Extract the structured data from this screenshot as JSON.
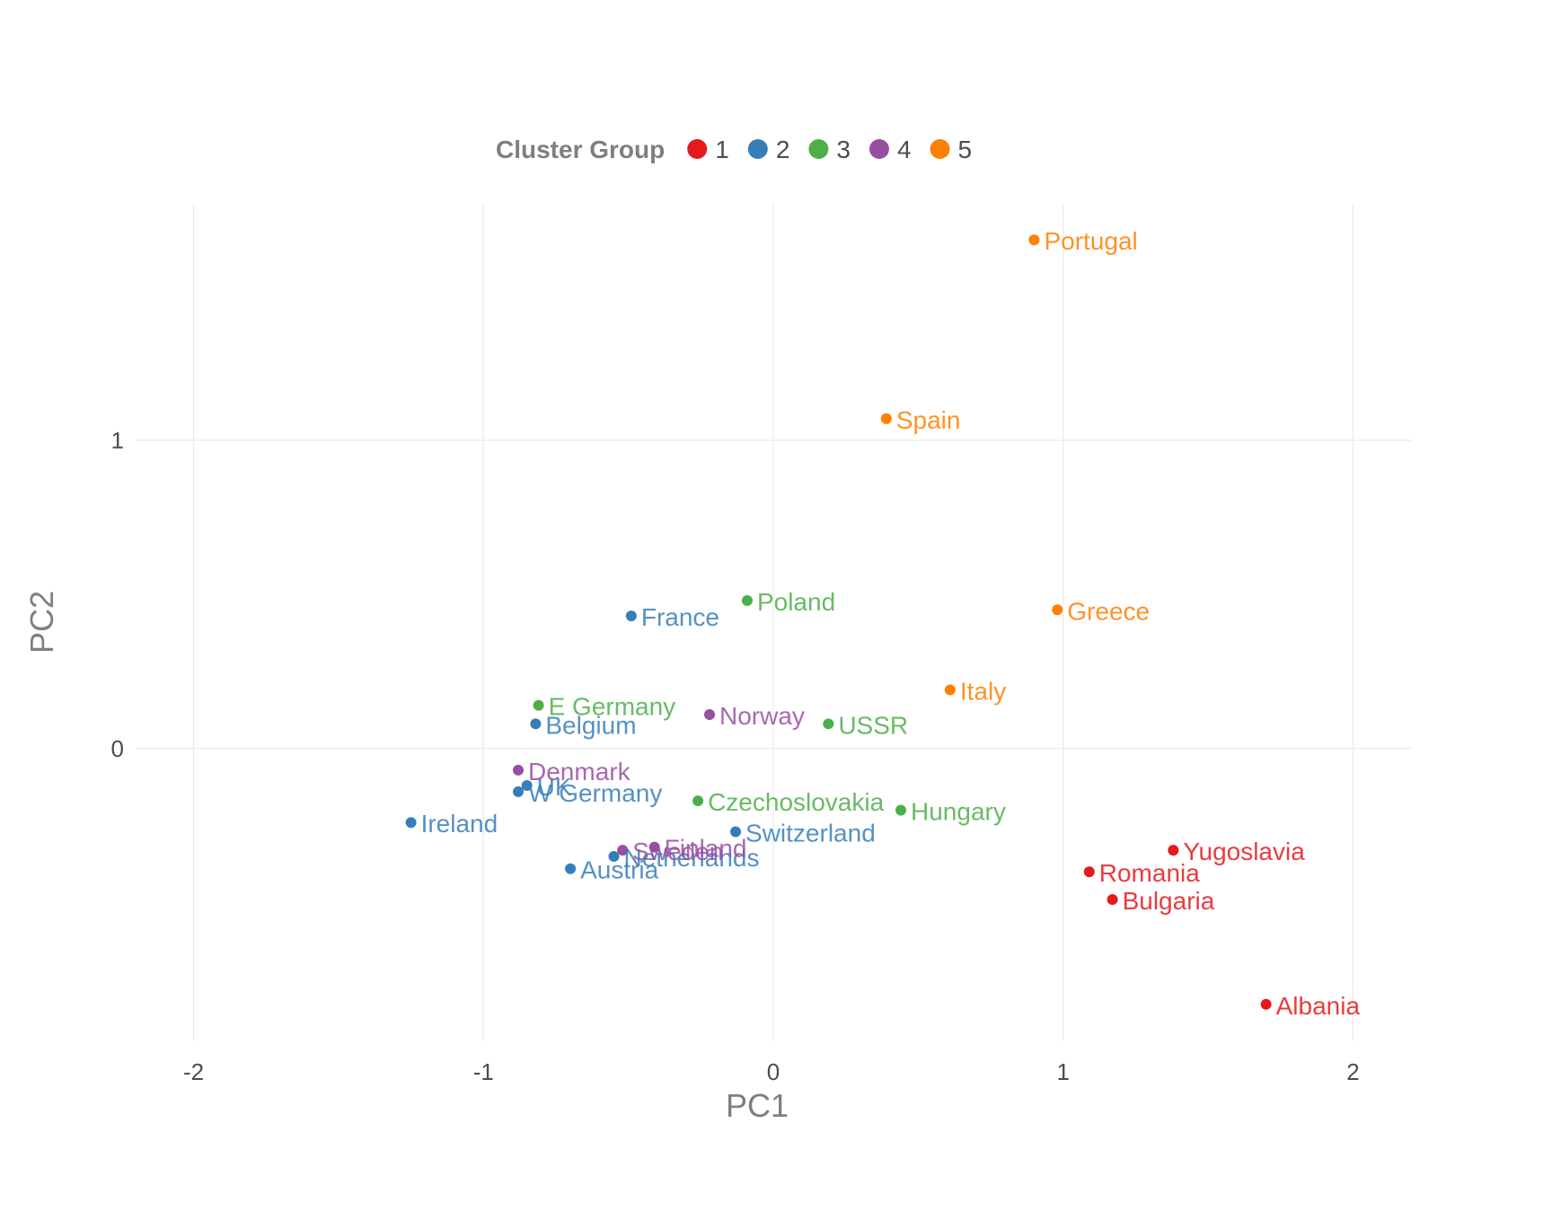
{
  "chart_data": {
    "type": "scatter",
    "xlabel": "PC1",
    "ylabel": "PC2",
    "xlim": [
      -2.2,
      2.2
    ],
    "ylim": [
      -0.95,
      1.77
    ],
    "x_ticks": [
      -2,
      -1,
      0,
      1,
      2
    ],
    "x_tick_labels": [
      "-2",
      "-1",
      "0",
      "1",
      "2"
    ],
    "y_ticks": [
      0,
      1
    ],
    "y_tick_labels": [
      "0",
      "1"
    ],
    "grid": true,
    "legend": {
      "title": "Cluster Group",
      "placement": "top",
      "entries": [
        {
          "label": "1",
          "color": "#e41a1c"
        },
        {
          "label": "2",
          "color": "#377eb8"
        },
        {
          "label": "3",
          "color": "#4daf4a"
        },
        {
          "label": "4",
          "color": "#984ea3"
        },
        {
          "label": "5",
          "color": "#ff7f00"
        }
      ]
    },
    "points": [
      {
        "label": "Portugal",
        "x": 0.9,
        "y": 1.65,
        "cluster": "5"
      },
      {
        "label": "Spain",
        "x": 0.39,
        "y": 1.07,
        "cluster": "5"
      },
      {
        "label": "Greece",
        "x": 0.98,
        "y": 0.45,
        "cluster": "5"
      },
      {
        "label": "Italy",
        "x": 0.61,
        "y": 0.19,
        "cluster": "5"
      },
      {
        "label": "Poland",
        "x": -0.09,
        "y": 0.48,
        "cluster": "3"
      },
      {
        "label": "E Germany",
        "x": -0.81,
        "y": 0.14,
        "cluster": "3"
      },
      {
        "label": "USSR",
        "x": 0.19,
        "y": 0.08,
        "cluster": "3"
      },
      {
        "label": "Czechoslovakia",
        "x": -0.26,
        "y": -0.17,
        "cluster": "3"
      },
      {
        "label": "Hungary",
        "x": 0.44,
        "y": -0.2,
        "cluster": "3"
      },
      {
        "label": "France",
        "x": -0.49,
        "y": 0.43,
        "cluster": "2"
      },
      {
        "label": "Belgium",
        "x": -0.82,
        "y": 0.08,
        "cluster": "2"
      },
      {
        "label": "UK",
        "x": -0.85,
        "y": -0.12,
        "cluster": "2"
      },
      {
        "label": "W Germany",
        "x": -0.88,
        "y": -0.14,
        "cluster": "2"
      },
      {
        "label": "Ireland",
        "x": -1.25,
        "y": -0.24,
        "cluster": "2"
      },
      {
        "label": "Switzerland",
        "x": -0.13,
        "y": -0.27,
        "cluster": "2"
      },
      {
        "label": "Netherlands",
        "x": -0.55,
        "y": -0.35,
        "cluster": "2"
      },
      {
        "label": "Austria",
        "x": -0.7,
        "y": -0.39,
        "cluster": "2"
      },
      {
        "label": "Norway",
        "x": -0.22,
        "y": 0.11,
        "cluster": "4"
      },
      {
        "label": "Denmark",
        "x": -0.88,
        "y": -0.07,
        "cluster": "4"
      },
      {
        "label": "Sweden",
        "x": -0.52,
        "y": -0.33,
        "cluster": "4"
      },
      {
        "label": "Finland",
        "x": -0.41,
        "y": -0.32,
        "cluster": "4"
      },
      {
        "label": "Yugoslavia",
        "x": 1.38,
        "y": -0.33,
        "cluster": "1"
      },
      {
        "label": "Romania",
        "x": 1.09,
        "y": -0.4,
        "cluster": "1"
      },
      {
        "label": "Bulgaria",
        "x": 1.17,
        "y": -0.49,
        "cluster": "1"
      },
      {
        "label": "Albania",
        "x": 1.7,
        "y": -0.83,
        "cluster": "1"
      }
    ]
  }
}
